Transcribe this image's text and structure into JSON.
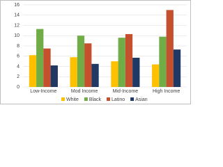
{
  "chart_data": {
    "type": "bar",
    "categories": [
      "Low-Income",
      "Mod Income",
      "Mid-Income",
      "High Income"
    ],
    "series": [
      {
        "name": "White",
        "color": "#ffc000",
        "values": [
          6.2,
          5.8,
          5.0,
          4.4
        ]
      },
      {
        "name": "Black",
        "color": "#70ad47",
        "values": [
          11.3,
          10.0,
          9.6,
          9.8
        ]
      },
      {
        "name": "Latino",
        "color": "#c5502d",
        "values": [
          7.5,
          8.5,
          10.3,
          15.0
        ]
      },
      {
        "name": "Asian",
        "color": "#1f3864",
        "values": [
          4.2,
          4.5,
          5.7,
          7.3
        ]
      }
    ],
    "ylim": [
      0,
      16
    ],
    "yticks": [
      0,
      2,
      4,
      6,
      8,
      10,
      12,
      14,
      16
    ],
    "grid": true
  }
}
